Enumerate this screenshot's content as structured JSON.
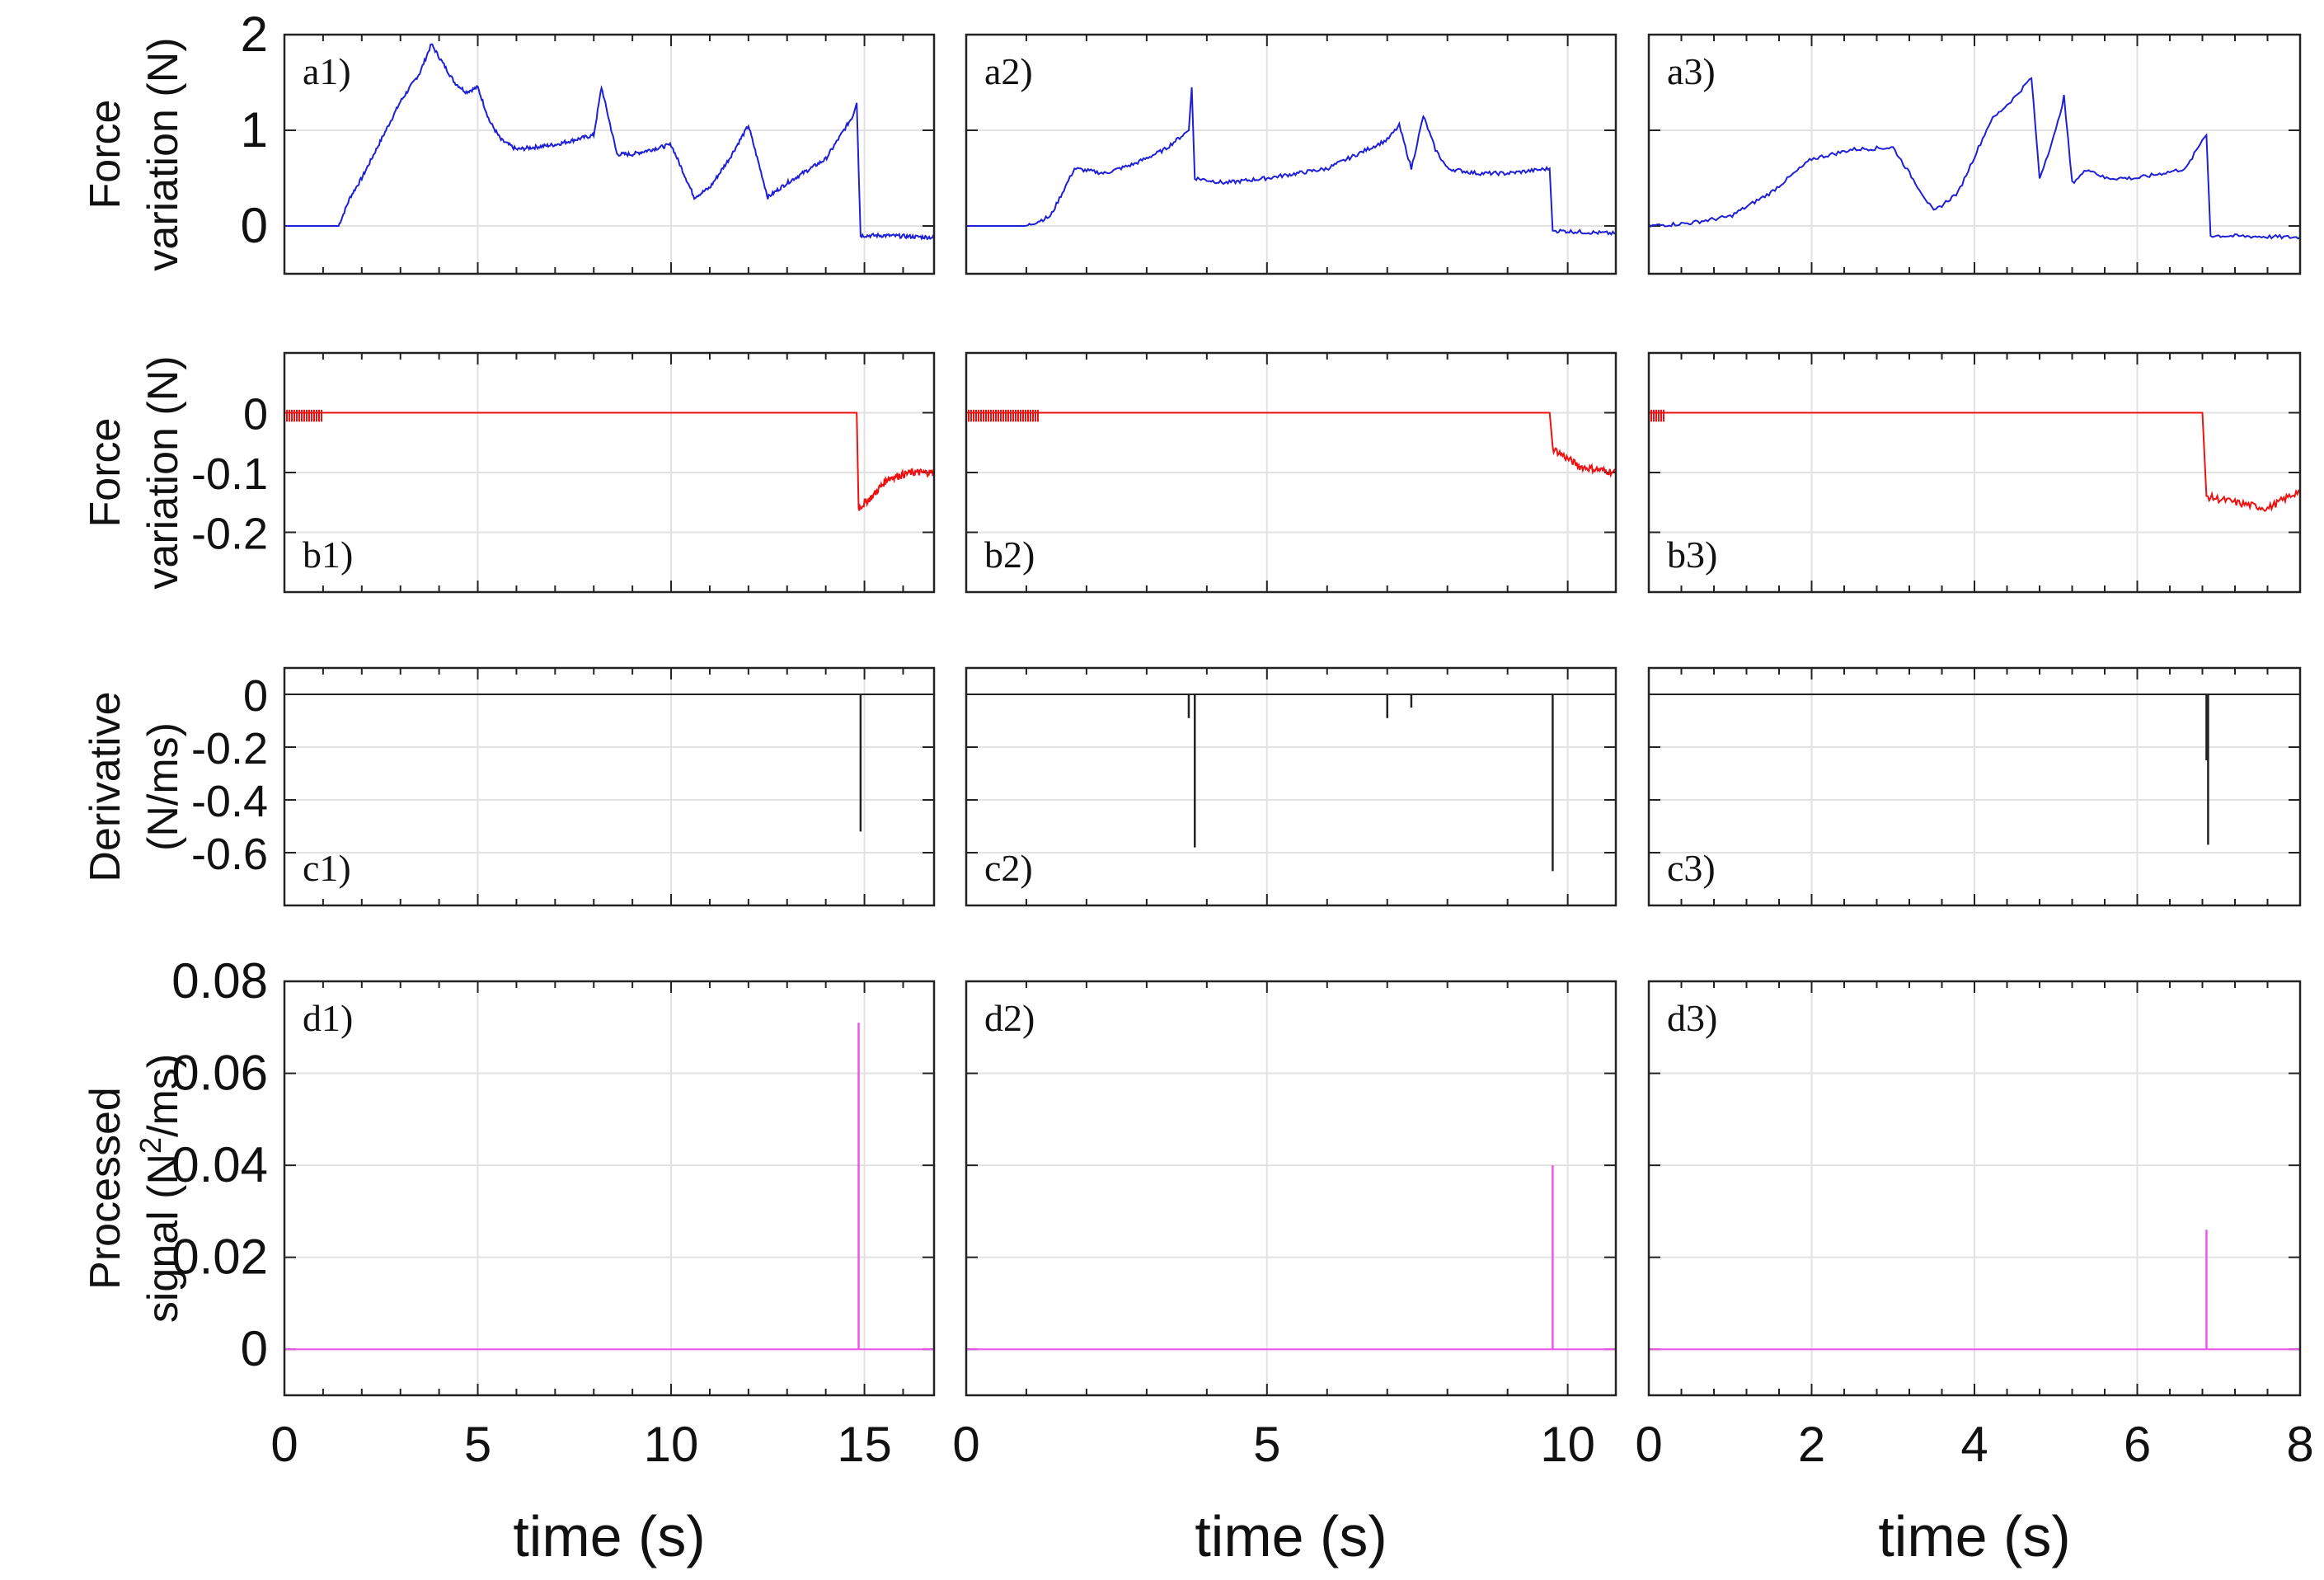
{
  "chart_data": {
    "type": "line",
    "layout": "4 rows x 3 columns of time-series panels",
    "grid": true,
    "x_axes": [
      {
        "column": 1,
        "range": [
          0,
          16.8
        ],
        "ticks": [
          0,
          5,
          10,
          15
        ],
        "label": "time (s)"
      },
      {
        "column": 2,
        "range": [
          0,
          10.8
        ],
        "ticks": [
          0,
          5,
          10
        ],
        "label": "time (s)"
      },
      {
        "column": 3,
        "range": [
          0,
          8
        ],
        "ticks": [
          0,
          2,
          4,
          6,
          8
        ],
        "label": "time (s)"
      }
    ],
    "rows": [
      {
        "row": "a",
        "ylabel_line1": "Force",
        "ylabel_line2": "variation (N)",
        "ylim": [
          -0.5,
          2
        ],
        "yticks": [
          0,
          1,
          2
        ],
        "color": "#1f1fd6",
        "panels": [
          {
            "label": "a1)",
            "x": [
              0,
              1.4,
              1.7,
              2,
              2.5,
              3,
              3.5,
              3.8,
              4.1,
              4.4,
              4.7,
              5,
              5.3,
              5.6,
              6,
              7,
              8,
              8.2,
              8.6,
              9,
              9.5,
              10,
              10.6,
              11,
              11.5,
              12,
              12.5,
              13,
              14,
              14.7,
              14.8,
              14.9,
              15.5,
              16.8
            ],
            "y": [
              0,
              0,
              0.3,
              0.5,
              0.9,
              1.3,
              1.6,
              1.9,
              1.7,
              1.5,
              1.4,
              1.45,
              1.1,
              0.9,
              0.8,
              0.85,
              0.95,
              1.45,
              0.75,
              0.75,
              0.8,
              0.85,
              0.3,
              0.4,
              0.7,
              1.05,
              0.3,
              0.45,
              0.7,
              1.15,
              1.3,
              -0.1,
              -0.1,
              -0.12
            ]
          },
          {
            "label": "a2)",
            "x": [
              0,
              1,
              1.4,
              1.8,
              2.3,
              2.8,
              3.3,
              3.7,
              3.75,
              3.8,
              4.3,
              5,
              6,
              7,
              7.2,
              7.4,
              7.6,
              7.8,
              8,
              8.5,
              9,
              9.7,
              9.75,
              9.8,
              10.8
            ],
            "y": [
              0,
              0,
              0.1,
              0.6,
              0.55,
              0.65,
              0.8,
              1.0,
              1.45,
              0.5,
              0.45,
              0.5,
              0.6,
              0.9,
              1.05,
              0.6,
              1.15,
              0.8,
              0.6,
              0.55,
              0.55,
              0.6,
              -0.05,
              -0.05,
              -0.08
            ]
          },
          {
            "label": "a3)",
            "x": [
              0,
              0.5,
              1,
              1.5,
              2,
              2.5,
              3,
              3.5,
              3.8,
              4.2,
              4.5,
              4.7,
              4.8,
              5,
              5.1,
              5.2,
              5.4,
              5.6,
              6,
              6.6,
              6.8,
              6.85,
              6.9,
              8
            ],
            "y": [
              0,
              0.03,
              0.1,
              0.35,
              0.7,
              0.8,
              0.82,
              0.15,
              0.35,
              1.1,
              1.35,
              1.55,
              0.5,
              1.0,
              1.35,
              0.45,
              0.6,
              0.5,
              0.5,
              0.6,
              0.9,
              0.95,
              -0.1,
              -0.12
            ]
          }
        ]
      },
      {
        "row": "b",
        "ylabel_line1": "Force",
        "ylabel_line2": "variation (N)",
        "ylim": [
          -0.3,
          0.1
        ],
        "yticks": [
          0,
          -0.1,
          -0.2
        ],
        "color": "#ee1111",
        "panels": [
          {
            "label": "b1)",
            "noise_until": 1.0,
            "x": [
              0,
              14.8,
              14.85,
              15.2,
              15.6,
              16.2,
              16.8
            ],
            "y": [
              0,
              0,
              -0.16,
              -0.14,
              -0.11,
              -0.1,
              -0.1
            ]
          },
          {
            "label": "b2)",
            "noise_until": 1.2,
            "x": [
              0,
              9.7,
              9.75,
              10.2,
              10.8
            ],
            "y": [
              0,
              0,
              -0.06,
              -0.09,
              -0.1
            ]
          },
          {
            "label": "b3)",
            "noise_until": 0.2,
            "x": [
              0,
              6.8,
              6.85,
              7.2,
              7.6,
              8
            ],
            "y": [
              0,
              0,
              -0.14,
              -0.15,
              -0.16,
              -0.13
            ]
          }
        ]
      },
      {
        "row": "c",
        "ylabel_line1": "Derivative",
        "ylabel_line2": "(N/ms)",
        "ylim": [
          -0.8,
          0.1
        ],
        "yticks": [
          0,
          -0.2,
          -0.4,
          -0.6
        ],
        "color": "#222222",
        "panels": [
          {
            "label": "c1)",
            "spikes": [
              {
                "t": 14.9,
                "v": -0.52
              }
            ]
          },
          {
            "label": "c2)",
            "spikes": [
              {
                "t": 3.7,
                "v": -0.09
              },
              {
                "t": 3.8,
                "v": -0.58
              },
              {
                "t": 7.0,
                "v": -0.09
              },
              {
                "t": 7.4,
                "v": -0.05
              },
              {
                "t": 9.75,
                "v": -0.67
              }
            ]
          },
          {
            "label": "c3)",
            "spikes": [
              {
                "t": 6.85,
                "v": -0.25
              },
              {
                "t": 6.87,
                "v": -0.57
              }
            ]
          }
        ]
      },
      {
        "row": "d",
        "ylabel_line1": "Processed",
        "ylabel_line2_prefix": "signal (N",
        "ylabel_line2_sup": "2",
        "ylabel_line2_suffix": "/ms)",
        "ylim": [
          -0.01,
          0.08
        ],
        "yticks": [
          0,
          0.02,
          0.04,
          0.06,
          0.08
        ],
        "color": "#ee55ee",
        "panels": [
          {
            "label": "d1)",
            "spikes": [
              {
                "t": 14.85,
                "v": 0.071
              }
            ]
          },
          {
            "label": "d2)",
            "spikes": [
              {
                "t": 9.75,
                "v": 0.04
              }
            ]
          },
          {
            "label": "d3)",
            "spikes": [
              {
                "t": 6.85,
                "v": 0.026
              }
            ]
          }
        ]
      }
    ]
  }
}
